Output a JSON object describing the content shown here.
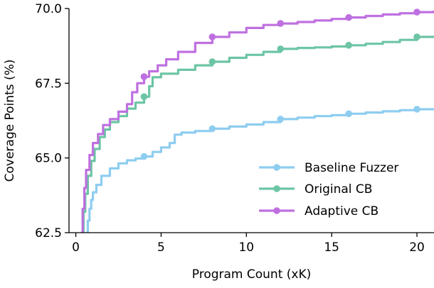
{
  "chart_data": {
    "type": "line",
    "title": "",
    "xlabel": "Program Count (xK)",
    "ylabel": "Coverage Points (%)",
    "xlim": [
      -0.4,
      21
    ],
    "ylim": [
      62.5,
      70.0
    ],
    "xticks": [
      0,
      5,
      10,
      15,
      20
    ],
    "xtick_labels": [
      "0",
      "5",
      "10",
      "15",
      "20"
    ],
    "yticks": [
      62.5,
      65.0,
      67.5,
      70.0
    ],
    "ytick_labels": [
      "62.5",
      "65.0",
      "67.5",
      "70.0"
    ],
    "grid": false,
    "legend_position": "lower-right",
    "series": [
      {
        "name": "Baseline Fuzzer",
        "color": "#8ecdf0",
        "x": [
          0.6,
          0.7,
          0.8,
          0.9,
          1.0,
          1.2,
          1.5,
          2.0,
          2.5,
          3.0,
          3.5,
          4.0,
          4.5,
          5.0,
          5.5,
          5.8,
          6.2,
          7.0,
          8.0,
          9.0,
          10.0,
          11.0,
          12.0,
          13.0,
          14.0,
          15.0,
          16.0,
          17.0,
          18.0,
          19.0,
          20.0,
          21.0
        ],
        "y": [
          62.5,
          62.9,
          63.3,
          63.6,
          63.85,
          64.1,
          64.4,
          64.65,
          64.82,
          64.92,
          64.98,
          65.05,
          65.2,
          65.35,
          65.5,
          65.78,
          65.85,
          65.9,
          65.98,
          66.05,
          66.12,
          66.2,
          66.3,
          66.35,
          66.4,
          66.43,
          66.48,
          66.52,
          66.56,
          66.6,
          66.63,
          66.66
        ],
        "markers_x": [
          4,
          8,
          12,
          16,
          20
        ],
        "markers_y": [
          65.05,
          65.98,
          66.3,
          66.48,
          66.63
        ]
      },
      {
        "name": "Original CB",
        "color": "#6cc5a4",
        "x": [
          0.35,
          0.45,
          0.55,
          0.7,
          0.9,
          1.1,
          1.4,
          1.7,
          2.0,
          2.5,
          3.0,
          3.5,
          4.0,
          4.3,
          4.5,
          5.0,
          6.0,
          7.0,
          8.0,
          9.0,
          10.0,
          11.0,
          12.0,
          13.0,
          14.0,
          15.0,
          16.0,
          17.0,
          18.0,
          19.0,
          20.0,
          21.0
        ],
        "y": [
          62.5,
          63.2,
          63.8,
          64.4,
          64.9,
          65.3,
          65.7,
          65.95,
          66.2,
          66.4,
          66.65,
          66.85,
          67.05,
          67.4,
          67.7,
          67.82,
          67.95,
          68.1,
          68.22,
          68.35,
          68.45,
          68.55,
          68.65,
          68.68,
          68.7,
          68.73,
          68.77,
          68.82,
          68.88,
          68.95,
          69.05,
          69.07
        ],
        "markers_x": [
          4,
          8,
          12,
          16,
          20
        ],
        "markers_y": [
          67.05,
          68.22,
          68.65,
          68.77,
          69.05
        ]
      },
      {
        "name": "Adaptive CB",
        "color": "#bf70e0",
        "x": [
          0.3,
          0.4,
          0.5,
          0.6,
          0.8,
          1.0,
          1.3,
          1.6,
          2.0,
          2.5,
          3.0,
          3.3,
          3.6,
          4.0,
          4.3,
          4.8,
          5.3,
          6.0,
          7.0,
          8.0,
          9.0,
          10.0,
          11.0,
          12.0,
          13.0,
          14.0,
          15.0,
          16.0,
          17.0,
          18.0,
          19.0,
          20.0,
          21.0
        ],
        "y": [
          62.5,
          63.3,
          64.0,
          64.6,
          65.1,
          65.5,
          65.8,
          66.1,
          66.3,
          66.55,
          66.8,
          67.2,
          67.5,
          67.72,
          67.9,
          68.1,
          68.3,
          68.55,
          68.85,
          69.05,
          69.2,
          69.35,
          69.45,
          69.5,
          69.55,
          69.6,
          69.65,
          69.7,
          69.75,
          69.8,
          69.84,
          69.88,
          69.93
        ],
        "markers_x": [
          4,
          8,
          12,
          16,
          20
        ],
        "markers_y": [
          67.72,
          69.05,
          69.5,
          69.7,
          69.88
        ]
      }
    ]
  }
}
